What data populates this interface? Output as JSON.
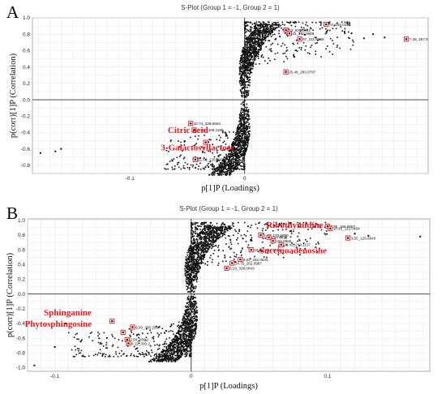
{
  "chart_data": [
    {
      "type": "scatter",
      "letter": "A",
      "title": "S-Plot (Group 1 = -1, Group 2 = 1)",
      "xlabel": "p[1]P (Loadings)",
      "ylabel": "p(corr)[1]P (Correlation)",
      "x_ticks": [
        -0.1,
        0
      ],
      "y_ticks": [
        1.0,
        0.8,
        0.6,
        0.4,
        0.2,
        0,
        -0.2,
        -0.4,
        -0.6,
        -0.8
      ],
      "xlim": [
        -0.185,
        0.16
      ],
      "ylim": [
        -0.9,
        1.0
      ],
      "grid": true,
      "cloud": [
        {
          "x0": -0.04,
          "x1": 0.04,
          "y0": -0.85,
          "y1": 0.95,
          "n": 1700
        },
        {
          "x0": 0.0,
          "x1": 0.095,
          "y0": 0.3,
          "y1": 0.95,
          "n": 380
        },
        {
          "x0": -0.07,
          "x1": 0.0,
          "y0": -0.85,
          "y1": -0.25,
          "n": 300
        }
      ],
      "outliers": [
        {
          "x": -0.178,
          "y": -0.65
        },
        {
          "x": -0.165,
          "y": -0.63
        },
        {
          "x": -0.16,
          "y": -0.6
        },
        {
          "x": 0.112,
          "y": 0.8
        },
        {
          "x": 0.104,
          "y": 0.75
        },
        {
          "x": 0.122,
          "y": 0.76
        }
      ],
      "points": [
        {
          "x": 0.071,
          "y": 0.92,
          "label": "74_283.0199"
        },
        {
          "x": 0.036,
          "y": 0.85,
          "label": "13_509.0992"
        },
        {
          "x": 0.039,
          "y": 0.81,
          "label": "15_292.0998"
        },
        {
          "x": 0.048,
          "y": 0.74,
          "label": "97_211.9988"
        },
        {
          "x": 0.141,
          "y": 0.74,
          "label": "7.26_297.0"
        },
        {
          "x": 0.036,
          "y": 0.34,
          "label": "25.48_283.0787"
        },
        {
          "x": -0.047,
          "y": -0.29,
          "label": "10.74_339.0663"
        },
        {
          "x": -0.044,
          "y": -0.37,
          "label": "11.61_349.1189"
        },
        {
          "x": -0.034,
          "y": -0.52,
          "label": ""
        },
        {
          "x": -0.043,
          "y": -0.73,
          "label": "11.66_225.0690"
        }
      ],
      "annotations": [
        {
          "text": "Citric acid",
          "x": -0.067,
          "y": -0.405
        },
        {
          "text": "3-Galactosyllactose",
          "x": -0.073,
          "y": -0.62
        }
      ]
    },
    {
      "type": "scatter",
      "letter": "B",
      "title": "S-Plot (Group 1 = -1, Group 2 = 1)",
      "xlabel": "p[1]P (Loadings)",
      "ylabel": "p(corr)[1]P (Correlation)",
      "x_ticks": [
        -0.1,
        0,
        0.1
      ],
      "y_ticks": [
        1.0,
        0.8,
        0.6,
        0.4,
        0.2,
        0,
        -0.2,
        -0.4,
        -0.6,
        -0.8,
        -1.0
      ],
      "xlim": [
        -0.12,
        0.175
      ],
      "ylim": [
        -1.05,
        1.02
      ],
      "grid": true,
      "cloud": [
        {
          "x0": -0.035,
          "x1": 0.035,
          "y0": -0.95,
          "y1": 0.97,
          "n": 1800
        },
        {
          "x0": 0.0,
          "x1": 0.1,
          "y0": 0.25,
          "y1": 0.97,
          "n": 420
        },
        {
          "x0": -0.09,
          "x1": 0.0,
          "y0": -0.85,
          "y1": -0.3,
          "n": 340
        }
      ],
      "outliers": [
        {
          "x": -0.115,
          "y": -0.97
        },
        {
          "x": -0.092,
          "y": -0.4
        },
        {
          "x": -0.1,
          "y": -0.72
        },
        {
          "x": 0.168,
          "y": 0.78
        },
        {
          "x": 0.12,
          "y": 0.82
        },
        {
          "x": 0.13,
          "y": 0.79
        }
      ],
      "points": [
        {
          "x": 0.1,
          "y": 0.92,
          "label": "5.95_166.9657"
        },
        {
          "x": 0.102,
          "y": 0.89,
          "label": "10.15_112.0484"
        },
        {
          "x": 0.115,
          "y": 0.76,
          "label": "3.55_126.0640"
        },
        {
          "x": 0.051,
          "y": 0.8,
          "label": "1.47_170.0890"
        },
        {
          "x": 0.057,
          "y": 0.77,
          "label": "268.0413"
        },
        {
          "x": 0.06,
          "y": 0.72,
          "label": "154.0665"
        },
        {
          "x": 0.066,
          "y": 0.67,
          "label": "16.42_244.1157"
        },
        {
          "x": 0.044,
          "y": 0.6,
          "label": "10.39_384.1122"
        },
        {
          "x": 0.036,
          "y": 0.47,
          "label": "9.62_332.0533"
        },
        {
          "x": 0.03,
          "y": 0.42,
          "label": "14.75_262.0987"
        },
        {
          "x": 0.026,
          "y": 0.35,
          "label": "8.19_338.0843"
        },
        {
          "x": -0.058,
          "y": -0.37,
          "label": ""
        },
        {
          "x": -0.043,
          "y": -0.45,
          "label": "6.09_300.2897"
        },
        {
          "x": -0.05,
          "y": -0.52,
          "label": ""
        },
        {
          "x": -0.047,
          "y": -0.62,
          "label": "9.50_299.1"
        },
        {
          "x": -0.046,
          "y": -0.67,
          "label": "8.12_300.2"
        }
      ],
      "annotations": [
        {
          "text": "Ribothymidine",
          "x": 0.055,
          "y": 0.9
        },
        {
          "text": "Succinoadenosine",
          "x": 0.05,
          "y": 0.55
        },
        {
          "text": "Sphinganine",
          "x": -0.108,
          "y": -0.29
        },
        {
          "text": "Phytosphingosine",
          "x": -0.122,
          "y": -0.445
        }
      ]
    }
  ]
}
